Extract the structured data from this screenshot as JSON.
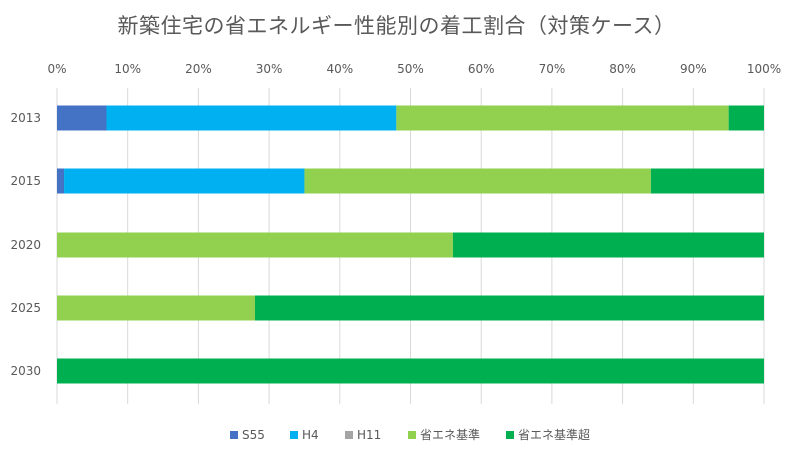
{
  "chart_data": {
    "type": "bar",
    "orientation": "horizontal",
    "stacked": "percent",
    "title": "新築住宅の省エネルギー性能別の着工割合（対策ケース）",
    "xlim": [
      0,
      100
    ],
    "x_ticks": [
      "0%",
      "10%",
      "20%",
      "30%",
      "40%",
      "50%",
      "60%",
      "70%",
      "80%",
      "90%",
      "100%"
    ],
    "grid": true,
    "legend_position": "bottom",
    "categories": [
      "2013",
      "2015",
      "2020",
      "2025",
      "2030"
    ],
    "series": [
      {
        "name": "S55",
        "color": "#4472C4",
        "values": [
          7,
          1,
          0,
          0,
          0
        ]
      },
      {
        "name": "H4",
        "color": "#00B0F0",
        "values": [
          41,
          34,
          0,
          0,
          0
        ]
      },
      {
        "name": "H11",
        "color": "#A5A5A5",
        "values": [
          0,
          0,
          0,
          0,
          0
        ]
      },
      {
        "name": "省エネ基準",
        "color": "#92D050",
        "values": [
          47,
          49,
          56,
          28,
          0
        ]
      },
      {
        "name": "省エネ基準超",
        "color": "#00B050",
        "values": [
          5,
          16,
          44,
          72,
          100
        ]
      }
    ]
  }
}
